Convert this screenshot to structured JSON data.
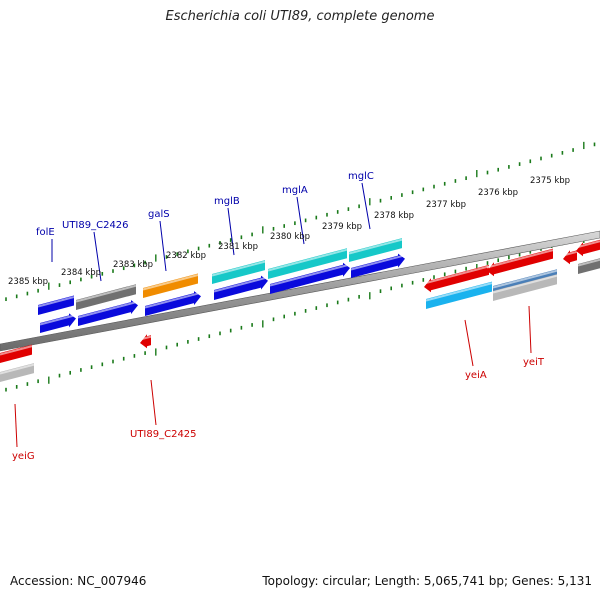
{
  "title": "Escherichia coli UTI89, complete genome",
  "footer": {
    "accession": "Accession: NC_007946",
    "stats": "Topology: circular; Length: 5,065,741 bp; Genes: 5,131"
  },
  "colors": {
    "blue": "#0a0adc",
    "cyan": "#16c8c8",
    "gray": "#707070",
    "orange": "#f08c00",
    "red": "#e00000",
    "lightblue": "#1ab2ee",
    "lightgray": "#b8b8b8",
    "steel": "#4a7fb8",
    "ruler": "#1a7a1a",
    "label_top": "#0000aa",
    "label_bottom": "#cc0000"
  },
  "kbp_labels": [
    {
      "id": "k2385",
      "text": "2385 kbp"
    },
    {
      "id": "k2384",
      "text": "2384 kbp"
    },
    {
      "id": "k2383",
      "text": "2383 kbp"
    },
    {
      "id": "k2382",
      "text": "2382 kbp"
    },
    {
      "id": "k2381",
      "text": "2381 kbp"
    },
    {
      "id": "k2380",
      "text": "2380 kbp"
    },
    {
      "id": "k2379",
      "text": "2379 kbp"
    },
    {
      "id": "k2378",
      "text": "2378 kbp"
    },
    {
      "id": "k2377",
      "text": "2377 kbp"
    },
    {
      "id": "k2376",
      "text": "2376 kbp"
    },
    {
      "id": "k2375",
      "text": "2375 kbp"
    }
  ],
  "gene_labels": [
    {
      "id": "folE",
      "text": "folE",
      "strand": "top"
    },
    {
      "id": "c2426",
      "text": "UTI89_C2426",
      "strand": "top"
    },
    {
      "id": "galS",
      "text": "galS",
      "strand": "top"
    },
    {
      "id": "mglB",
      "text": "mglB",
      "strand": "top"
    },
    {
      "id": "mglA",
      "text": "mglA",
      "strand": "top"
    },
    {
      "id": "mglC",
      "text": "mglC",
      "strand": "top"
    },
    {
      "id": "c2425",
      "text": "UTI89_C2425",
      "strand": "bottom"
    },
    {
      "id": "yeiA",
      "text": "yeiA",
      "strand": "bottom"
    },
    {
      "id": "yeiT",
      "text": "yeiT",
      "strand": "bottom"
    },
    {
      "id": "yeiG",
      "text": "yeiG",
      "strand": "bottom"
    }
  ]
}
